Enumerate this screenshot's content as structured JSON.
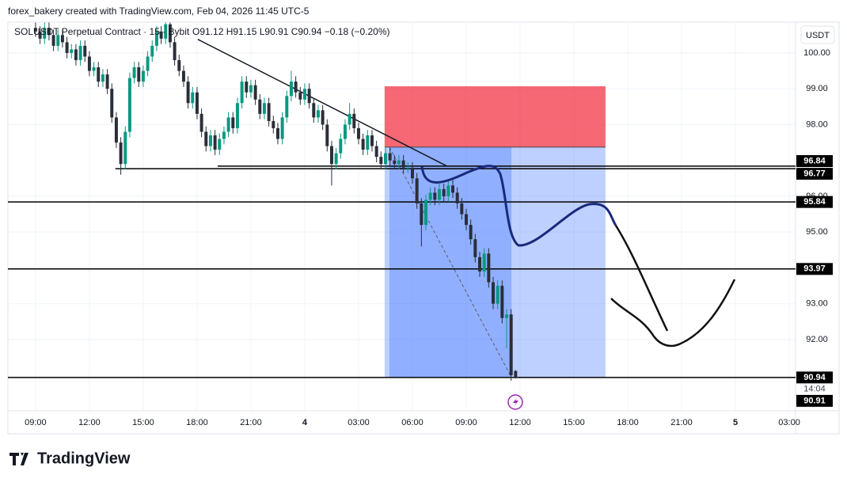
{
  "chart_data": {
    "type": "candlestick",
    "header": "forex_bakery created with TradingView.com, Feb 04, 2026 11:45 UTC-5",
    "symbol": "SOLUSDT Perpetual Contract · 15 · Bybit",
    "ohlc_text": "O91.12 H91.15 L90.91 C90.94 −0.18 (−0.20%)",
    "currency": "USDT",
    "x": [
      9,
      9.25,
      9.5,
      9.75,
      10,
      10.25,
      10.5,
      10.75,
      11,
      11.25,
      11.5,
      11.75,
      12,
      12.25,
      12.5,
      12.75,
      13,
      13.25,
      13.5,
      13.75,
      14,
      14.25,
      14.5,
      14.75,
      15,
      15.25,
      15.5,
      15.75,
      16,
      16.25,
      16.5,
      16.75,
      17,
      17.25,
      17.5,
      17.75,
      18,
      18.25,
      18.5,
      18.75,
      19,
      19.25,
      19.5,
      19.75,
      20,
      20.25,
      20.5,
      20.75,
      21,
      21.25,
      21.5,
      21.75,
      22,
      22.25,
      22.5,
      22.75,
      23,
      23.25,
      23.5,
      23.75,
      24,
      24.25,
      24.5,
      24.75,
      25,
      25.25,
      25.5,
      25.75,
      26,
      26.25,
      26.5,
      26.75,
      27,
      27.25,
      27.5,
      27.75,
      28,
      28.25,
      28.5,
      28.75,
      29,
      29.25,
      29.5,
      29.75,
      30,
      30.25,
      30.5,
      30.75,
      31,
      31.25,
      31.5,
      31.75,
      32,
      32.25,
      32.5,
      32.75,
      33,
      33.25,
      33.5,
      33.75,
      34,
      34.25,
      34.5,
      34.75,
      35,
      35.25,
      35.5,
      35.75
    ],
    "ohlc": [
      [
        100.7,
        100.85,
        100.45,
        100.6
      ],
      [
        100.6,
        100.75,
        100.25,
        100.4
      ],
      [
        100.4,
        100.85,
        100.25,
        100.7
      ],
      [
        100.7,
        100.85,
        100.35,
        100.5
      ],
      [
        100.5,
        100.65,
        100.05,
        100.2
      ],
      [
        100.2,
        100.65,
        100.05,
        100.5
      ],
      [
        100.5,
        100.65,
        100.15,
        100.3
      ],
      [
        100.3,
        100.45,
        99.85,
        100.0
      ],
      [
        100.0,
        100.25,
        99.85,
        100.1
      ],
      [
        100.1,
        100.25,
        99.65,
        99.8
      ],
      [
        99.8,
        100.35,
        99.65,
        100.2
      ],
      [
        100.2,
        100.35,
        99.75,
        99.9
      ],
      [
        99.9,
        100.05,
        99.35,
        99.5
      ],
      [
        99.5,
        99.75,
        99.35,
        99.6
      ],
      [
        99.6,
        99.75,
        99.05,
        99.2
      ],
      [
        99.2,
        99.55,
        99.05,
        99.4
      ],
      [
        99.4,
        99.55,
        98.85,
        99.0
      ],
      [
        99.0,
        99.15,
        98.05,
        98.2
      ],
      [
        98.2,
        98.35,
        97.35,
        97.5
      ],
      [
        97.5,
        97.65,
        96.6,
        96.9
      ],
      [
        96.9,
        97.95,
        96.75,
        97.8
      ],
      [
        97.8,
        99.45,
        97.65,
        99.3
      ],
      [
        99.3,
        99.75,
        99.15,
        99.6
      ],
      [
        99.6,
        99.75,
        99.05,
        99.2
      ],
      [
        99.2,
        99.65,
        99.05,
        99.5
      ],
      [
        99.5,
        100.05,
        99.35,
        99.9
      ],
      [
        99.9,
        100.35,
        99.75,
        100.2
      ],
      [
        100.2,
        100.75,
        100.05,
        100.6
      ],
      [
        100.6,
        100.75,
        100.25,
        100.4
      ],
      [
        100.4,
        100.85,
        100.25,
        100.8
      ],
      [
        100.8,
        100.85,
        100.15,
        100.3
      ],
      [
        100.3,
        100.45,
        99.65,
        99.8
      ],
      [
        99.8,
        99.95,
        99.35,
        99.5
      ],
      [
        99.5,
        99.65,
        99.05,
        99.2
      ],
      [
        99.2,
        99.35,
        98.45,
        98.6
      ],
      [
        98.6,
        99.05,
        98.45,
        98.9
      ],
      [
        98.9,
        99.05,
        98.15,
        98.3
      ],
      [
        98.3,
        98.45,
        97.65,
        97.8
      ],
      [
        97.8,
        97.95,
        97.25,
        97.4
      ],
      [
        97.4,
        97.85,
        97.25,
        97.7
      ],
      [
        97.7,
        97.85,
        97.15,
        97.3
      ],
      [
        97.3,
        97.75,
        97.15,
        97.6
      ],
      [
        97.6,
        97.95,
        97.45,
        97.8
      ],
      [
        97.8,
        98.35,
        97.65,
        98.2
      ],
      [
        98.2,
        98.35,
        97.75,
        97.9
      ],
      [
        97.9,
        98.75,
        97.75,
        98.6
      ],
      [
        98.6,
        99.35,
        98.45,
        99.2
      ],
      [
        99.2,
        99.35,
        98.75,
        98.9
      ],
      [
        98.9,
        99.25,
        98.75,
        99.1
      ],
      [
        99.1,
        99.25,
        98.55,
        98.7
      ],
      [
        98.7,
        98.85,
        98.15,
        98.3
      ],
      [
        98.3,
        98.75,
        98.15,
        98.6
      ],
      [
        98.6,
        98.75,
        97.95,
        98.1
      ],
      [
        98.1,
        98.25,
        97.75,
        97.9
      ],
      [
        97.9,
        98.05,
        97.45,
        97.6
      ],
      [
        97.6,
        98.35,
        97.45,
        98.2
      ],
      [
        98.2,
        98.95,
        98.05,
        98.8
      ],
      [
        98.8,
        99.5,
        98.65,
        99.2
      ],
      [
        99.2,
        99.35,
        98.75,
        98.9
      ],
      [
        98.9,
        99.05,
        98.55,
        98.7
      ],
      [
        98.7,
        99.15,
        98.55,
        99.0
      ],
      [
        99.0,
        99.15,
        98.45,
        98.6
      ],
      [
        98.6,
        98.75,
        98.05,
        98.2
      ],
      [
        98.2,
        98.55,
        98.05,
        98.4
      ],
      [
        98.4,
        98.55,
        97.85,
        98.0
      ],
      [
        98.0,
        98.15,
        97.25,
        97.4
      ],
      [
        97.4,
        97.55,
        96.3,
        96.9
      ],
      [
        96.9,
        97.35,
        96.75,
        97.2
      ],
      [
        97.2,
        97.75,
        97.05,
        97.6
      ],
      [
        97.6,
        98.15,
        97.45,
        98.0
      ],
      [
        98.0,
        98.6,
        97.85,
        98.3
      ],
      [
        98.3,
        98.45,
        97.75,
        97.9
      ],
      [
        97.9,
        98.05,
        97.45,
        97.6
      ],
      [
        97.6,
        97.75,
        97.15,
        97.3
      ],
      [
        97.3,
        97.85,
        97.15,
        97.7
      ],
      [
        97.7,
        97.85,
        97.25,
        97.4
      ],
      [
        97.4,
        97.55,
        96.95,
        97.1
      ],
      [
        97.1,
        97.25,
        96.75,
        96.9
      ],
      [
        96.9,
        97.35,
        96.75,
        97.2
      ],
      [
        97.2,
        97.35,
        96.85,
        97.0
      ],
      [
        97.0,
        97.15,
        96.75,
        96.9
      ],
      [
        96.9,
        97.15,
        96.75,
        97.0
      ],
      [
        97.0,
        97.15,
        96.65,
        96.8
      ],
      [
        96.8,
        96.95,
        96.65,
        96.8
      ],
      [
        96.8,
        96.95,
        96.35,
        96.5
      ],
      [
        96.5,
        96.65,
        95.65,
        95.8
      ],
      [
        95.8,
        95.95,
        94.6,
        95.2
      ],
      [
        95.2,
        96.05,
        95.05,
        95.9
      ],
      [
        95.9,
        96.25,
        95.75,
        96.1
      ],
      [
        96.1,
        96.25,
        95.75,
        95.9
      ],
      [
        95.9,
        96.35,
        95.75,
        96.2
      ],
      [
        96.2,
        96.35,
        95.85,
        96.0
      ],
      [
        96.0,
        96.45,
        95.85,
        96.3
      ],
      [
        96.3,
        96.45,
        95.95,
        96.1
      ],
      [
        96.1,
        96.25,
        95.65,
        95.8
      ],
      [
        95.8,
        95.95,
        95.35,
        95.5
      ],
      [
        95.5,
        95.65,
        95.05,
        95.2
      ],
      [
        95.2,
        95.35,
        94.65,
        94.8
      ],
      [
        94.8,
        94.95,
        94.15,
        94.3
      ],
      [
        94.3,
        94.45,
        93.75,
        93.9
      ],
      [
        93.9,
        94.55,
        93.75,
        94.4
      ],
      [
        94.4,
        94.55,
        93.45,
        93.6
      ],
      [
        93.6,
        93.75,
        92.85,
        93.0
      ],
      [
        93.0,
        93.65,
        92.85,
        93.5
      ],
      [
        93.5,
        93.65,
        92.45,
        92.6
      ],
      [
        92.6,
        92.85,
        91.75,
        92.7
      ],
      [
        92.7,
        92.85,
        90.85,
        91.0
      ],
      [
        91.12,
        91.15,
        90.91,
        90.94
      ]
    ],
    "up_color": "#089981",
    "down_color": "#2a2e39",
    "xlim": [
      7.46,
      51.35
    ],
    "ylim": [
      90.01,
      100.86
    ],
    "xticks": [
      {
        "value": 9,
        "label": "09:00"
      },
      {
        "value": 12,
        "label": "12:00"
      },
      {
        "value": 15,
        "label": "15:00"
      },
      {
        "value": 18,
        "label": "18:00"
      },
      {
        "value": 21,
        "label": "21:00"
      },
      {
        "value": 24,
        "label": "4"
      },
      {
        "value": 27,
        "label": "03:00"
      },
      {
        "value": 30,
        "label": "06:00"
      },
      {
        "value": 33,
        "label": "09:00"
      },
      {
        "value": 36,
        "label": "12:00"
      },
      {
        "value": 39,
        "label": "15:00"
      },
      {
        "value": 42,
        "label": "18:00"
      },
      {
        "value": 45,
        "label": "21:00"
      },
      {
        "value": 48,
        "label": "5"
      },
      {
        "value": 51,
        "label": "03:00"
      }
    ],
    "yticks": [
      {
        "value": 100,
        "label": "100.00"
      },
      {
        "value": 99,
        "label": "99.00"
      },
      {
        "value": 98,
        "label": "98.00"
      },
      {
        "value": 96,
        "label": "96.00"
      },
      {
        "value": 95,
        "label": "95.00"
      },
      {
        "value": 93,
        "label": "93.00"
      },
      {
        "value": 92,
        "label": "92.00"
      }
    ],
    "grid": true,
    "levels": [
      {
        "price": 96.84,
        "from": 19.15
      },
      {
        "price": 96.77,
        "from": 13.45
      },
      {
        "price": 95.84
      },
      {
        "price": 93.97
      },
      {
        "price": 90.94
      }
    ],
    "trendline": {
      "x": [
        18.04,
        31.93
      ],
      "y": [
        100.38,
        96.84
      ]
    },
    "position": {
      "entry": 97.37,
      "stop": 99.07,
      "target": 90.94,
      "start": 28.45,
      "end": 40.76,
      "fill_from": 28.72,
      "fill_to": 35.52
    },
    "countdown": "14:04",
    "low_price": 90.91,
    "brand": "TradingView"
  }
}
